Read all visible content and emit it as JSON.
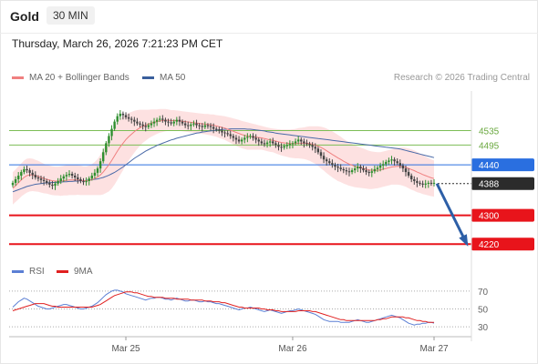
{
  "header": {
    "asset": "Gold",
    "timeframe": "30 MIN"
  },
  "datetime": "Thursday, March 26, 2026 7:21:23 PM CET",
  "legend": {
    "items": [
      {
        "label": "MA 20 + Bollinger Bands",
        "color": "#f08080"
      },
      {
        "label": "MA 50",
        "color": "#3a5f9c"
      }
    ],
    "copyright": "Research © 2026 Trading Central"
  },
  "rsi_legend": {
    "items": [
      {
        "label": "RSI",
        "color": "#5b7fd4"
      },
      {
        "label": "9MA",
        "color": "#e02020"
      }
    ]
  },
  "chart_data": [
    {
      "type": "candlestick",
      "title": "Gold",
      "ylim": [
        4165,
        4645
      ],
      "xticks": [
        {
          "label": "Mar 25",
          "i": 40
        },
        {
          "label": "Mar 26",
          "i": 99
        },
        {
          "label": "Mar 27",
          "i": 149
        }
      ],
      "levels": [
        {
          "label": "4535",
          "value": 4535,
          "color": "#7cbd55",
          "style": "thin",
          "tag": false
        },
        {
          "label": "4495",
          "value": 4495,
          "color": "#7cbd55",
          "style": "thin",
          "tag": false
        },
        {
          "label": "4440",
          "value": 4440,
          "color": "#2a6fe0",
          "style": "line",
          "tag": true
        },
        {
          "label": "4388",
          "value": 4388,
          "color": "#2b2b2b",
          "style": "dotted",
          "tag": true
        },
        {
          "label": "4300",
          "value": 4300,
          "color": "#e8141b",
          "style": "thick",
          "tag": true
        },
        {
          "label": "4220",
          "value": 4220,
          "color": "#e8141b",
          "style": "thick",
          "tag": true
        }
      ],
      "forecast_arrow": {
        "from_i": 150,
        "from": 4388,
        "to_i": 161,
        "to": 4220,
        "color": "#2d5fa7"
      },
      "close_series": [
        4390,
        4400,
        4410,
        4420,
        4428,
        4425,
        4418,
        4412,
        4405,
        4402,
        4398,
        4395,
        4390,
        4385,
        4382,
        4388,
        4395,
        4402,
        4408,
        4412,
        4415,
        4410,
        4405,
        4400,
        4395,
        4392,
        4395,
        4402,
        4410,
        4418,
        4430,
        4450,
        4475,
        4500,
        4520,
        4540,
        4560,
        4575,
        4582,
        4578,
        4572,
        4568,
        4565,
        4560,
        4555,
        4552,
        4548,
        4545,
        4550,
        4555,
        4560,
        4565,
        4568,
        4565,
        4560,
        4558,
        4555,
        4560,
        4565,
        4560,
        4555,
        4550,
        4548,
        4552,
        4555,
        4550,
        4548,
        4545,
        4550,
        4548,
        4545,
        4540,
        4538,
        4535,
        4530,
        4528,
        4525,
        4520,
        4515,
        4510,
        4505,
        4510,
        4515,
        4518,
        4520,
        4515,
        4510,
        4505,
        4500,
        4498,
        4502,
        4505,
        4500,
        4495,
        4490,
        4488,
        4492,
        4495,
        4498,
        4500,
        4505,
        4510,
        4505,
        4500,
        4498,
        4495,
        4490,
        4485,
        4475,
        4465,
        4455,
        4450,
        4445,
        4440,
        4435,
        4432,
        4428,
        4425,
        4422,
        4420,
        4425,
        4430,
        4435,
        4430,
        4425,
        4420,
        4418,
        4422,
        4428,
        4432,
        4438,
        4442,
        4448,
        4452,
        4455,
        4450,
        4445,
        4438,
        4430,
        4420,
        4410,
        4400,
        4395,
        4390,
        4388,
        4385,
        4388,
        4390,
        4388,
        4390
      ],
      "ma20": [
        4375,
        4382,
        4390,
        4398,
        4405,
        4410,
        4412,
        4412,
        4410,
        4408,
        4405,
        4402,
        4400,
        4398,
        4396,
        4395,
        4395,
        4395,
        4396,
        4397,
        4398,
        4398,
        4398,
        4398,
        4397,
        4396,
        4396,
        4397,
        4399,
        4402,
        4406,
        4412,
        4420,
        4430,
        4440,
        4452,
        4465,
        4478,
        4490,
        4500,
        4510,
        4518,
        4525,
        4532,
        4538,
        4543,
        4547,
        4550,
        4553,
        4556,
        4558,
        4560,
        4562,
        4563,
        4564,
        4564,
        4563,
        4563,
        4563,
        4562,
        4561,
        4560,
        4559,
        4558,
        4557,
        4556,
        4555,
        4554,
        4553,
        4552,
        4551,
        4550,
        4548,
        4546,
        4544,
        4542,
        4539,
        4536,
        4533,
        4530,
        4527,
        4524,
        4522,
        4520,
        4519,
        4518,
        4517,
        4516,
        4515,
        4513,
        4511,
        4509,
        4508,
        4506,
        4504,
        4502,
        4501,
        4500,
        4499,
        4499,
        4499,
        4500,
        4500,
        4500,
        4500,
        4499,
        4497,
        4495,
        4492,
        4488,
        4484,
        4479,
        4474,
        4469,
        4464,
        4459,
        4455,
        4450,
        4446,
        4442,
        4439,
        4436,
        4434,
        4432,
        4430,
        4428,
        4426,
        4425,
        4425,
        4425,
        4426,
        4428,
        4430,
        4432,
        4434,
        4435,
        4436,
        4436,
        4435,
        4433,
        4430,
        4427,
        4424,
        4420,
        4417,
        4413,
        4410,
        4407,
        4404,
        4402
      ],
      "ma50": [
        4365,
        4368,
        4371,
        4374,
        4377,
        4380,
        4382,
        4384,
        4386,
        4387,
        4388,
        4389,
        4390,
        4390,
        4391,
        4391,
        4392,
        4392,
        4393,
        4393,
        4394,
        4394,
        4395,
        4395,
        4396,
        4396,
        4397,
        4398,
        4399,
        4400,
        4401,
        4403,
        4405,
        4408,
        4411,
        4415,
        4419,
        4424,
        4429,
        4434,
        4440,
        4446,
        4452,
        4458,
        4463,
        4468,
        4473,
        4478,
        4482,
        4486,
        4490,
        4494,
        4497,
        4500,
        4503,
        4506,
        4509,
        4511,
        4514,
        4516,
        4518,
        4520,
        4522,
        4524,
        4526,
        4528,
        4529,
        4531,
        4532,
        4533,
        4534,
        4535,
        4536,
        4537,
        4538,
        4539,
        4539,
        4540,
        4540,
        4540,
        4540,
        4540,
        4540,
        4539,
        4539,
        4538,
        4537,
        4536,
        4535,
        4534,
        4532,
        4531,
        4530,
        4528,
        4527,
        4526,
        4525,
        4524,
        4523,
        4522,
        4521,
        4520,
        4519,
        4518,
        4517,
        4516,
        4515,
        4514,
        4513,
        4512,
        4511,
        4510,
        4509,
        4508,
        4507,
        4506,
        4505,
        4504,
        4503,
        4502,
        4501,
        4500,
        4499,
        4498,
        4497,
        4496,
        4495,
        4494,
        4493,
        4492,
        4491,
        4490,
        4489,
        4488,
        4487,
        4486,
        4485,
        4484,
        4482,
        4480,
        4478,
        4476,
        4474,
        4472,
        4470,
        4468,
        4466,
        4464,
        4462,
        4460
      ],
      "bb_width": [
        45,
        45,
        46,
        46,
        47,
        47,
        46,
        45,
        44,
        43,
        42,
        41,
        40,
        40,
        40,
        40,
        40,
        41,
        41,
        42,
        42,
        42,
        42,
        41,
        41,
        40,
        40,
        41,
        43,
        46,
        50,
        56,
        62,
        68,
        74,
        78,
        80,
        80,
        78,
        75,
        70,
        66,
        62,
        58,
        54,
        50,
        46,
        43,
        40,
        38,
        36,
        34,
        33,
        32,
        31,
        30,
        29,
        29,
        28,
        28,
        28,
        28,
        28,
        28,
        28,
        28,
        28,
        28,
        28,
        29,
        29,
        30,
        30,
        31,
        32,
        33,
        34,
        35,
        36,
        37,
        38,
        38,
        38,
        38,
        37,
        36,
        35,
        34,
        33,
        33,
        33,
        33,
        33,
        34,
        35,
        36,
        37,
        38,
        39,
        40,
        41,
        42,
        43,
        44,
        46,
        48,
        50,
        52,
        55,
        58,
        60,
        62,
        63,
        64,
        64,
        64,
        63,
        62,
        61,
        60,
        59,
        58,
        57,
        56,
        55,
        54,
        53,
        52,
        51,
        50,
        49,
        49,
        49,
        49,
        49,
        50,
        51,
        52,
        53,
        54,
        55,
        56,
        56,
        56,
        55,
        54,
        53,
        52,
        51,
        50
      ]
    },
    {
      "type": "line",
      "title": "RSI",
      "ylim": [
        23,
        78
      ],
      "yticks": [
        70,
        50,
        30
      ],
      "series": [
        {
          "name": "RSI",
          "color": "#5b7fd4",
          "values": [
            52,
            55,
            58,
            60,
            62,
            61,
            59,
            57,
            55,
            53,
            52,
            51,
            50,
            50,
            51,
            52,
            53,
            54,
            55,
            55,
            54,
            53,
            52,
            51,
            50,
            50,
            51,
            52,
            53,
            55,
            57,
            60,
            63,
            66,
            68,
            70,
            71,
            71,
            70,
            69,
            67,
            66,
            65,
            64,
            63,
            62,
            61,
            60,
            61,
            62,
            62,
            63,
            63,
            62,
            61,
            61,
            60,
            61,
            62,
            61,
            60,
            59,
            59,
            60,
            60,
            59,
            58,
            58,
            59,
            58,
            58,
            57,
            56,
            56,
            55,
            54,
            53,
            52,
            51,
            50,
            49,
            50,
            51,
            51,
            52,
            51,
            50,
            49,
            48,
            47,
            48,
            49,
            48,
            47,
            46,
            45,
            46,
            47,
            48,
            48,
            49,
            50,
            49,
            48,
            47,
            46,
            45,
            44,
            42,
            40,
            38,
            37,
            36,
            36,
            36,
            36,
            35,
            35,
            35,
            35,
            36,
            37,
            38,
            37,
            36,
            35,
            35,
            36,
            37,
            38,
            39,
            40,
            41,
            42,
            43,
            42,
            41,
            40,
            38,
            36,
            34,
            33,
            32,
            33,
            33,
            34,
            34,
            35,
            35,
            34
          ]
        },
        {
          "name": "9MA",
          "color": "#e02020",
          "values": [
            48,
            49,
            50,
            51,
            52,
            53,
            54,
            55,
            56,
            56,
            56,
            56,
            55,
            54,
            53,
            53,
            52,
            52,
            52,
            52,
            52,
            52,
            52,
            52,
            52,
            52,
            52,
            52,
            52,
            53,
            54,
            55,
            57,
            59,
            61,
            63,
            65,
            66,
            67,
            68,
            69,
            69,
            69,
            68,
            68,
            67,
            66,
            65,
            64,
            64,
            63,
            63,
            63,
            63,
            62,
            62,
            62,
            62,
            61,
            61,
            61,
            61,
            61,
            60,
            60,
            60,
            60,
            60,
            59,
            59,
            59,
            58,
            58,
            58,
            57,
            57,
            56,
            55,
            54,
            53,
            52,
            52,
            51,
            51,
            51,
            51,
            51,
            51,
            50,
            50,
            49,
            49,
            49,
            48,
            48,
            47,
            47,
            47,
            47,
            47,
            47,
            48,
            48,
            48,
            48,
            48,
            47,
            47,
            46,
            45,
            44,
            43,
            42,
            41,
            40,
            39,
            38,
            38,
            37,
            37,
            37,
            37,
            37,
            37,
            37,
            37,
            37,
            37,
            37,
            38,
            38,
            39,
            39,
            40,
            41,
            41,
            41,
            41,
            41,
            40,
            40,
            39,
            38,
            37,
            37,
            36,
            36,
            35,
            35,
            35
          ]
        }
      ]
    }
  ]
}
